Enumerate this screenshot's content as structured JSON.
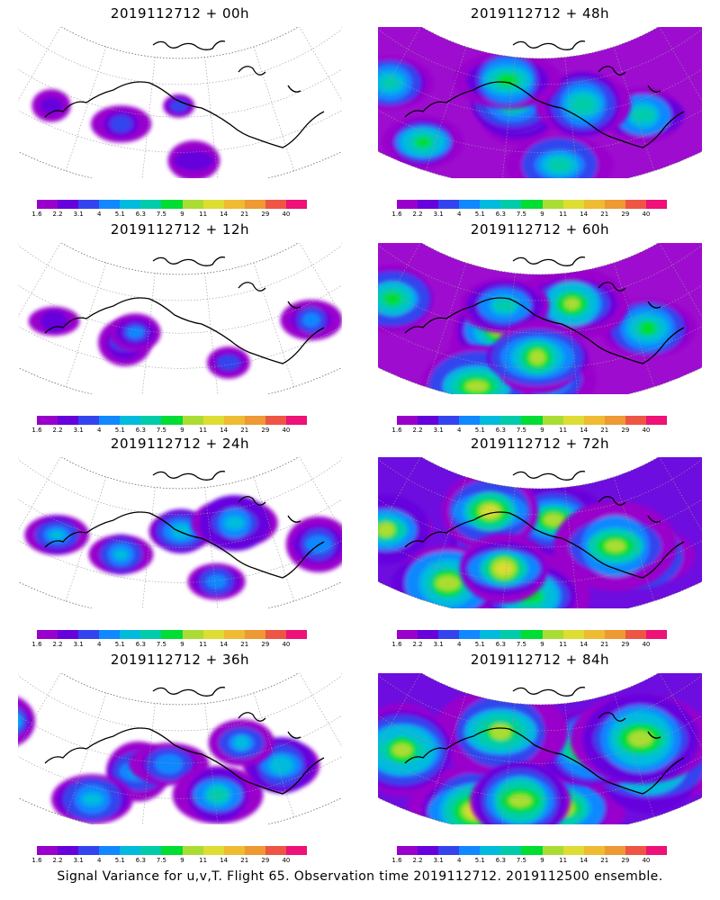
{
  "panels": [
    {
      "title": "2019112712 + 00h",
      "intensity": 0
    },
    {
      "title": "2019112712 + 48h",
      "intensity": 4
    },
    {
      "title": "2019112712 + 12h",
      "intensity": 1
    },
    {
      "title": "2019112712 + 60h",
      "intensity": 5
    },
    {
      "title": "2019112712 + 24h",
      "intensity": 2
    },
    {
      "title": "2019112712 + 72h",
      "intensity": 6
    },
    {
      "title": "2019112712 + 36h",
      "intensity": 3
    },
    {
      "title": "2019112712 + 84h",
      "intensity": 7
    }
  ],
  "colorbar": {
    "labels": [
      "1.6",
      "2.2",
      "3.1",
      "4",
      "5.1",
      "6.3",
      "7.5",
      "9",
      "11",
      "14",
      "21",
      "29",
      "40"
    ],
    "colors": [
      "#9900cc",
      "#6600dd",
      "#3344ee",
      "#1188ff",
      "#00bbdd",
      "#00ccaa",
      "#00dd33",
      "#aadd33",
      "#dddd33",
      "#eebb33",
      "#ee9933",
      "#ee5544",
      "#ee1177"
    ]
  },
  "footer": "Signal Variance for u,v,T. Flight 65. Observation time 2019112712. 2019112500 ensemble."
}
